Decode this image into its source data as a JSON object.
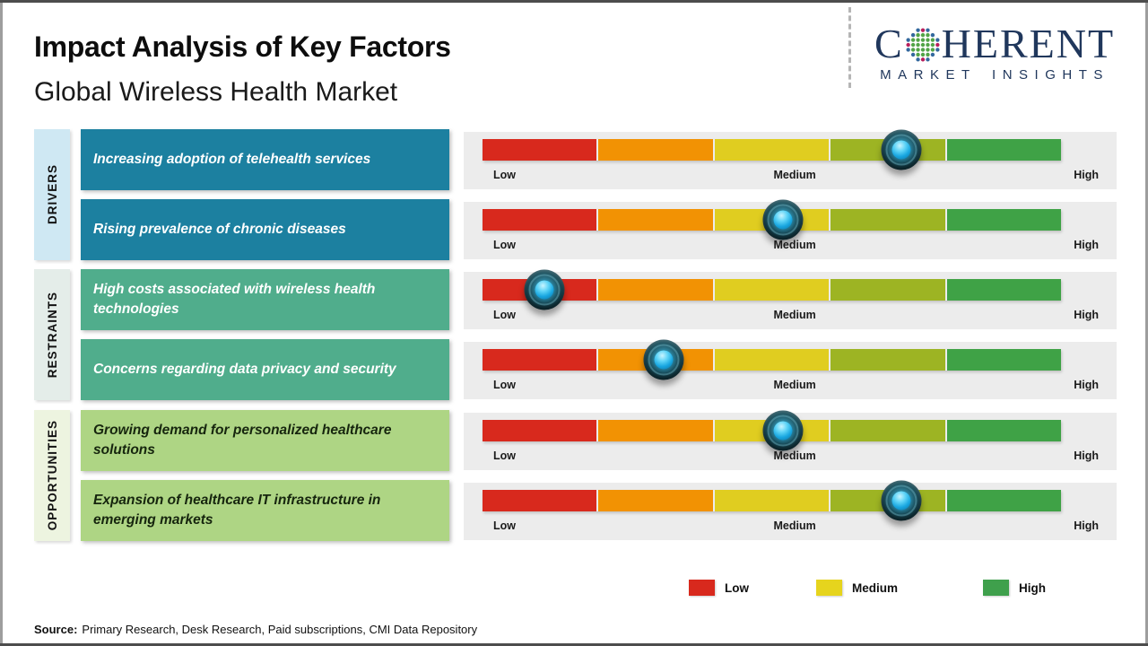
{
  "header": {
    "title": "Impact Analysis of Key Factors",
    "subtitle": "Global Wireless Health Market",
    "logo": {
      "name_start": "C",
      "name_end": "HERENT",
      "tagline": "MARKET INSIGHTS",
      "text_color": "#20375c",
      "globe_green": "#52a447",
      "globe_blue": "#33689e",
      "globe_magenta": "#b81e5b"
    }
  },
  "colors": {
    "driver_box": "#1c80a0",
    "driver_strip": "#cfe8f3",
    "restraint_box": "#50ad8c",
    "restraint_strip": "#e4ede9",
    "opportunity_box": "#aed584",
    "opportunity_strip": "#edf4e0",
    "panel_gray": "#ececec",
    "segments": [
      "#d8291d",
      "#f29203",
      "#e0cd20",
      "#9db423",
      "#3fa246"
    ]
  },
  "scale": {
    "low": "Low",
    "medium": "Medium",
    "high": "High"
  },
  "groups": [
    {
      "category": "DRIVERS",
      "rows": [
        {
          "label": "Increasing adoption of telehealth services",
          "impact_pct": 72.4
        },
        {
          "label": "Rising prevalence of chronic diseases",
          "impact_pct": 51.9
        }
      ]
    },
    {
      "category": "RESTRAINTS",
      "rows": [
        {
          "label": "High costs associated with wireless health technologies",
          "impact_pct": 10.7
        },
        {
          "label": "Concerns regarding data privacy and security",
          "impact_pct": 31.3
        }
      ]
    },
    {
      "category": "OPPORTUNITIES",
      "rows": [
        {
          "label": "Growing demand for personalized healthcare solutions",
          "impact_pct": 51.9
        },
        {
          "label": "Expansion of healthcare IT infrastructure in emerging markets",
          "impact_pct": 72.4
        }
      ]
    }
  ],
  "legend": [
    {
      "label": "Low",
      "color": "#d8291d"
    },
    {
      "label": "Medium",
      "color": "#e6d41d"
    },
    {
      "label": "High",
      "color": "#3fa04c"
    }
  ],
  "source": {
    "prefix": "Source:",
    "text": "Primary Research, Desk Research, Paid subscriptions, CMI Data Repository"
  },
  "chart_data": {
    "type": "scatter",
    "title": "Impact Analysis of Key Factors",
    "subtitle": "Global Wireless Health Market",
    "x_scale": {
      "tick_labels": [
        "Low",
        "Medium",
        "High"
      ],
      "range_pct": [
        0,
        100
      ],
      "segments": 5
    },
    "rows": [
      {
        "group": "DRIVERS",
        "factor": "Increasing adoption of telehealth services",
        "impact_pct": 72
      },
      {
        "group": "DRIVERS",
        "factor": "Rising prevalence of chronic diseases",
        "impact_pct": 52
      },
      {
        "group": "RESTRAINTS",
        "factor": "High costs associated with wireless health technologies",
        "impact_pct": 11
      },
      {
        "group": "RESTRAINTS",
        "factor": "Concerns regarding data privacy and security",
        "impact_pct": 31
      },
      {
        "group": "OPPORTUNITIES",
        "factor": "Growing demand for personalized healthcare solutions",
        "impact_pct": 52
      },
      {
        "group": "OPPORTUNITIES",
        "factor": "Expansion of healthcare IT infrastructure in emerging markets",
        "impact_pct": 72
      }
    ],
    "legend": [
      "Low",
      "Medium",
      "High"
    ],
    "legend_position": "bottom-right"
  }
}
